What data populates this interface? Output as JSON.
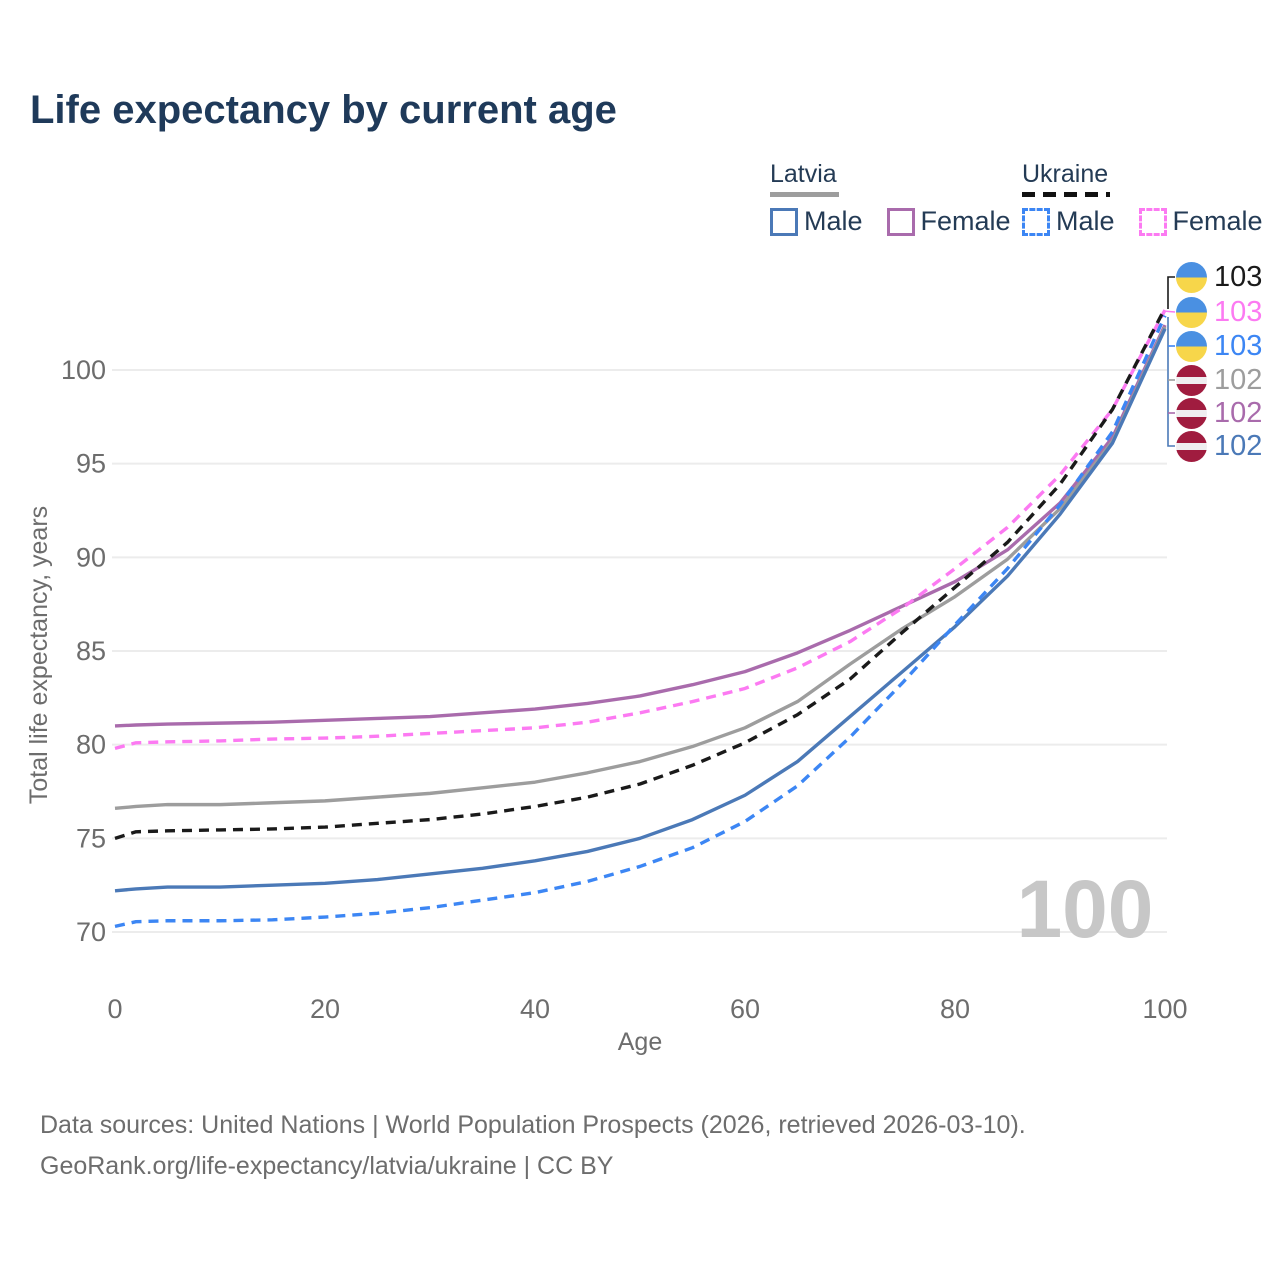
{
  "title": "Life expectancy by current age",
  "legend": {
    "groups": [
      {
        "label": "Latvia",
        "style": "solid",
        "underline_color": "#9d9d9d",
        "items": [
          {
            "label": "Male",
            "color": "#4b79b7"
          },
          {
            "label": "Female",
            "color": "#a96bac"
          }
        ]
      },
      {
        "label": "Ukraine",
        "style": "dashed",
        "underline_color": "#111111",
        "items": [
          {
            "label": "Male",
            "color": "#3c86f4"
          },
          {
            "label": "Female",
            "color": "#fc7af2"
          }
        ]
      }
    ]
  },
  "chart_data": {
    "type": "line",
    "title": "Life expectancy by current age",
    "xlabel": "Age",
    "ylabel": "Total life expectancy, years",
    "xlim": [
      0,
      100
    ],
    "ylim": [
      70,
      100
    ],
    "x_ticks": [
      0,
      20,
      40,
      60,
      80,
      100
    ],
    "y_ticks": [
      70,
      75,
      80,
      85,
      90,
      95,
      100
    ],
    "grid": "horizontal",
    "legend_position": "top-right",
    "watermark": "100",
    "ages": [
      0,
      2,
      5,
      10,
      15,
      20,
      25,
      30,
      35,
      40,
      45,
      50,
      55,
      60,
      65,
      70,
      75,
      80,
      85,
      90,
      95,
      100
    ],
    "series": [
      {
        "name": "Latvia Female",
        "country": "Latvia",
        "sex": "Female",
        "line": "solid",
        "color": "#a96bac",
        "values": [
          81.0,
          81.05,
          81.1,
          81.15,
          81.2,
          81.3,
          81.4,
          81.5,
          81.7,
          81.9,
          82.2,
          82.6,
          83.2,
          83.9,
          84.9,
          86.1,
          87.4,
          88.7,
          90.4,
          92.9,
          96.4,
          102.4
        ]
      },
      {
        "name": "Latvia Both sexes",
        "country": "Latvia",
        "sex": "Both",
        "line": "solid",
        "color": "#9d9d9d",
        "values": [
          76.6,
          76.7,
          76.8,
          76.8,
          76.9,
          77.0,
          77.2,
          77.4,
          77.7,
          78.0,
          78.5,
          79.1,
          79.9,
          80.9,
          82.3,
          84.3,
          86.2,
          87.9,
          89.9,
          92.6,
          96.2,
          102.3
        ]
      },
      {
        "name": "Latvia Male",
        "country": "Latvia",
        "sex": "Male",
        "line": "solid",
        "color": "#4b79b7",
        "values": [
          72.2,
          72.3,
          72.4,
          72.4,
          72.5,
          72.6,
          72.8,
          73.1,
          73.4,
          73.8,
          74.3,
          75.0,
          76.0,
          77.3,
          79.1,
          81.5,
          83.9,
          86.3,
          89.0,
          92.3,
          96.1,
          102.2
        ]
      },
      {
        "name": "Ukraine Female",
        "country": "Ukraine",
        "sex": "Female",
        "line": "dashed",
        "color": "#fc7af2",
        "values": [
          79.8,
          80.1,
          80.15,
          80.2,
          80.3,
          80.35,
          80.45,
          80.6,
          80.75,
          80.9,
          81.2,
          81.7,
          82.3,
          83.0,
          84.1,
          85.5,
          87.3,
          89.4,
          91.6,
          94.4,
          97.9,
          103.2
        ]
      },
      {
        "name": "Ukraine Both sexes",
        "country": "Ukraine",
        "sex": "Both",
        "line": "dashed",
        "color": "#1a1a1a",
        "values": [
          75.0,
          75.35,
          75.4,
          75.45,
          75.5,
          75.6,
          75.8,
          76.0,
          76.3,
          76.7,
          77.2,
          77.9,
          78.9,
          80.1,
          81.6,
          83.5,
          86.0,
          88.4,
          90.8,
          93.9,
          97.9,
          103.3
        ]
      },
      {
        "name": "Ukraine Male",
        "country": "Ukraine",
        "sex": "Male",
        "line": "dashed",
        "color": "#3c86f4",
        "values": [
          70.3,
          70.55,
          70.6,
          70.6,
          70.65,
          70.8,
          71.0,
          71.3,
          71.7,
          72.1,
          72.7,
          73.5,
          74.5,
          75.9,
          77.8,
          80.4,
          83.3,
          86.4,
          89.4,
          92.8,
          96.7,
          102.9
        ]
      }
    ]
  },
  "end_labels": [
    {
      "flag": "ukraine",
      "value": "103",
      "color": "#1a1a1a"
    },
    {
      "flag": "ukraine",
      "value": "103",
      "color": "#fc7af2"
    },
    {
      "flag": "ukraine",
      "value": "103",
      "color": "#3c86f4"
    },
    {
      "flag": "latvia",
      "value": "102",
      "color": "#9d9d9d"
    },
    {
      "flag": "latvia",
      "value": "102",
      "color": "#a96bac"
    },
    {
      "flag": "latvia",
      "value": "102",
      "color": "#4b79b7"
    }
  ],
  "footer": {
    "line1": "Data sources: United Nations | World Population Prospects (2026, retrieved 2026-03-10).",
    "line2": "GeoRank.org/life-expectancy/latvia/ukraine | CC BY"
  },
  "colors": {
    "title": "#1f3a5a",
    "axis_text": "#6d6d6d",
    "gridline": "#ececec",
    "watermark": "#c7c7c7"
  }
}
